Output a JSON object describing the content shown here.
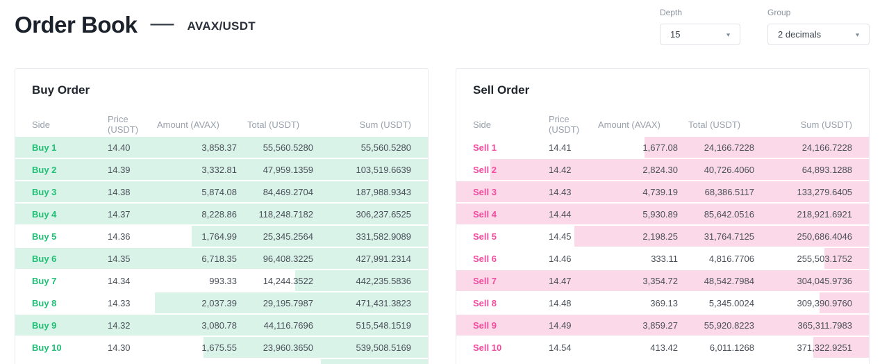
{
  "header": {
    "title": "Order Book",
    "separator": "—",
    "pair": "AVAX/USDT"
  },
  "controls": {
    "depth": {
      "label": "Depth",
      "value": "15"
    },
    "group": {
      "label": "Group",
      "value": "2 decimals"
    }
  },
  "columns": [
    "Side",
    "Price (USDT)",
    "Amount (AVAX)",
    "Total (USDT)",
    "Sum (USDT)"
  ],
  "buy_panel": {
    "title": "Buy Order",
    "rows": [
      {
        "side": "Buy 1",
        "price": "14.40",
        "amount": "3,858.37",
        "total": "55,560.5280",
        "sum": "55,560.5280",
        "depth_pct": 100
      },
      {
        "side": "Buy 2",
        "price": "14.39",
        "amount": "3,332.81",
        "total": "47,959.1359",
        "sum": "103,519.6639",
        "depth_pct": 100
      },
      {
        "side": "Buy 3",
        "price": "14.38",
        "amount": "5,874.08",
        "total": "84,469.2704",
        "sum": "187,988.9343",
        "depth_pct": 100
      },
      {
        "side": "Buy 4",
        "price": "14.37",
        "amount": "8,228.86",
        "total": "118,248.7182",
        "sum": "306,237.6525",
        "depth_pct": 100
      },
      {
        "side": "Buy 5",
        "price": "14.36",
        "amount": "1,764.99",
        "total": "25,345.2564",
        "sum": "331,582.9089",
        "depth_pct": 57.3
      },
      {
        "side": "Buy 6",
        "price": "14.35",
        "amount": "6,718.35",
        "total": "96,408.3225",
        "sum": "427,991.2314",
        "depth_pct": 100
      },
      {
        "side": "Buy 7",
        "price": "14.34",
        "amount": "993.33",
        "total": "14,244.3522",
        "sum": "442,235.5836",
        "depth_pct": 32.2
      },
      {
        "side": "Buy 8",
        "price": "14.33",
        "amount": "2,037.39",
        "total": "29,195.7987",
        "sum": "471,431.3823",
        "depth_pct": 66.1
      },
      {
        "side": "Buy 9",
        "price": "14.32",
        "amount": "3,080.78",
        "total": "44,116.7696",
        "sum": "515,548.1519",
        "depth_pct": 100
      },
      {
        "side": "Buy 10",
        "price": "14.30",
        "amount": "1,675.55",
        "total": "23,960.3650",
        "sum": "539,508.5169",
        "depth_pct": 54.4
      }
    ],
    "partial_row": {
      "depth_pct": 26
    }
  },
  "sell_panel": {
    "title": "Sell Order",
    "rows": [
      {
        "side": "Sell 1",
        "price": "14.41",
        "amount": "1,677.08",
        "total": "24,166.7228",
        "sum": "24,166.7228",
        "depth_pct": 54.4
      },
      {
        "side": "Sell 2",
        "price": "14.42",
        "amount": "2,824.30",
        "total": "40,726.4060",
        "sum": "64,893.1288",
        "depth_pct": 91.7
      },
      {
        "side": "Sell 3",
        "price": "14.43",
        "amount": "4,739.19",
        "total": "68,386.5117",
        "sum": "133,279.6405",
        "depth_pct": 100
      },
      {
        "side": "Sell 4",
        "price": "14.44",
        "amount": "5,930.89",
        "total": "85,642.0516",
        "sum": "218,921.6921",
        "depth_pct": 100
      },
      {
        "side": "Sell 5",
        "price": "14.45",
        "amount": "2,198.25",
        "total": "31,764.7125",
        "sum": "250,686.4046",
        "depth_pct": 71.3
      },
      {
        "side": "Sell 6",
        "price": "14.46",
        "amount": "333.11",
        "total": "4,816.7706",
        "sum": "255,503.1752",
        "depth_pct": 10.8
      },
      {
        "side": "Sell 7",
        "price": "14.47",
        "amount": "3,354.72",
        "total": "48,542.7984",
        "sum": "304,045.9736",
        "depth_pct": 100
      },
      {
        "side": "Sell 8",
        "price": "14.48",
        "amount": "369.13",
        "total": "5,345.0024",
        "sum": "309,390.9760",
        "depth_pct": 12
      },
      {
        "side": "Sell 9",
        "price": "14.49",
        "amount": "3,859.27",
        "total": "55,920.8223",
        "sum": "365,311.7983",
        "depth_pct": 100
      },
      {
        "side": "Sell 10",
        "price": "14.54",
        "amount": "413.42",
        "total": "6,011.1268",
        "sum": "371,322.9251",
        "depth_pct": 13.4
      }
    ],
    "partial_row": {
      "depth_pct": 0
    }
  },
  "colors": {
    "accent_buy": "#1fbf75",
    "accent_sell": "#f14d9e",
    "bar_buy": "#d9f3e8",
    "bar_sell": "#fcd9e9",
    "border": "#e7eaee"
  }
}
